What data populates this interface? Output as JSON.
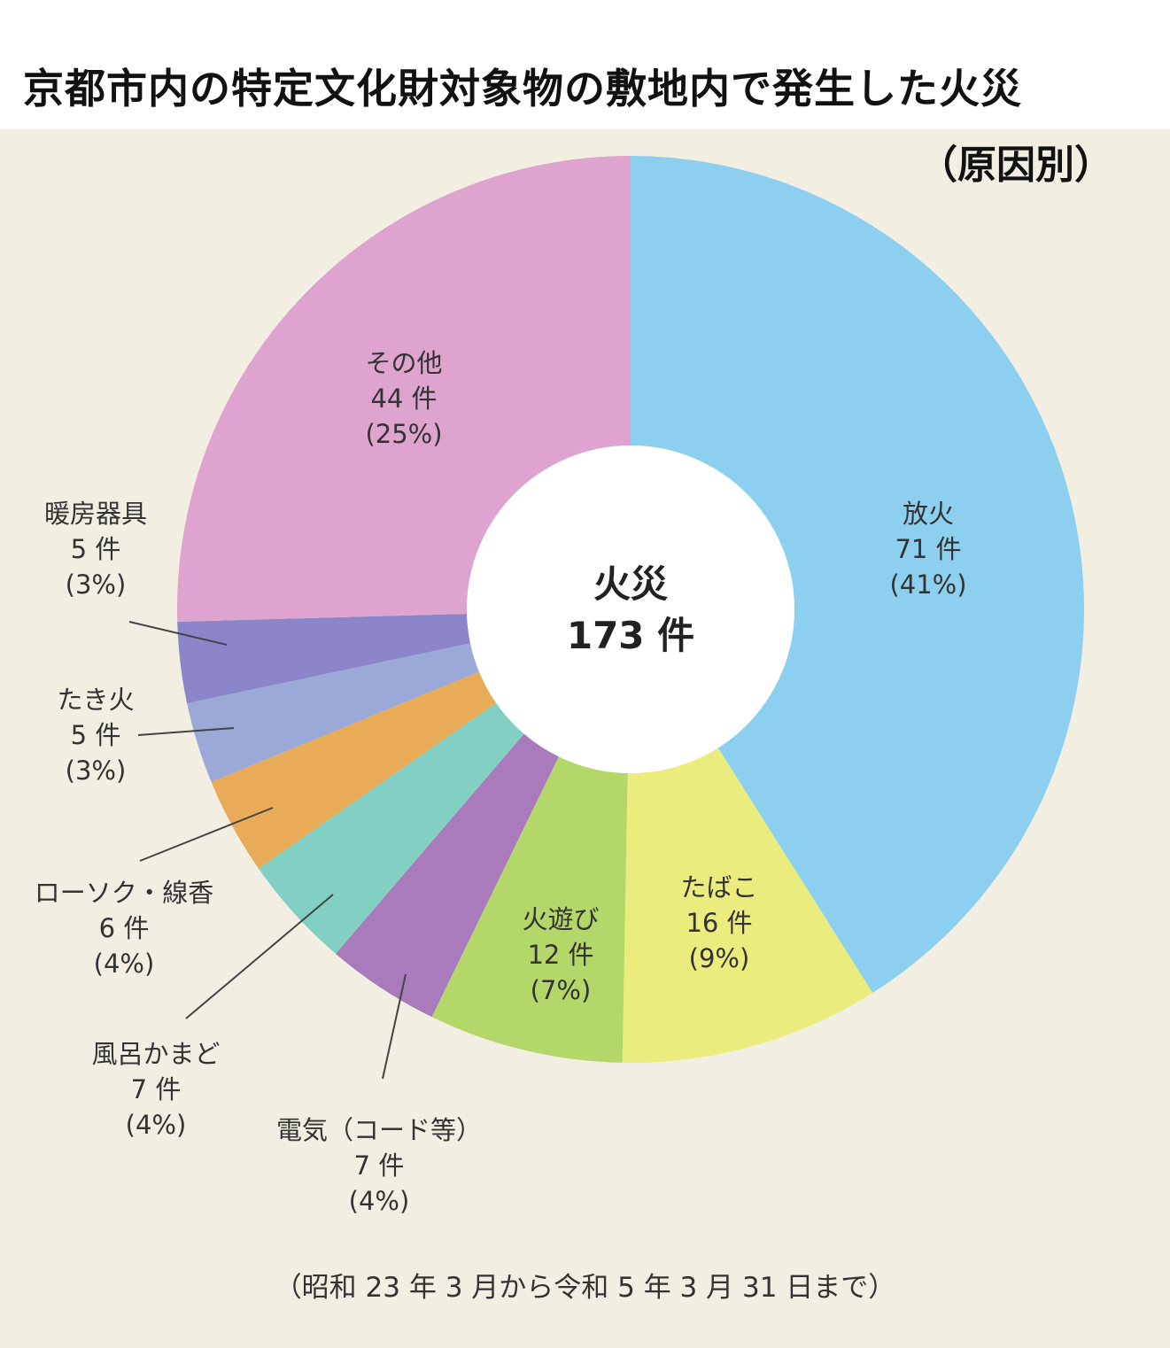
{
  "title": "京都市内の特定文化財対象物の敷地内で発生した火災",
  "subtitle": "（原因別）",
  "footnote": "（昭和 23 年 3 月から令和 5 年 3 月 31 日まで）",
  "chart_data": {
    "type": "pie",
    "style": "donut",
    "title": "京都市内の特定文化財対象物の敷地内で発生した火災",
    "subtitle": "（原因別）",
    "center": {
      "line1": "火災",
      "line2": "173 件"
    },
    "total": 173,
    "slices": [
      {
        "name": "放火",
        "count_label": "71 件",
        "pct_label": "(41%)",
        "value": 71,
        "color": "#8dcfee"
      },
      {
        "name": "たばこ",
        "count_label": "16 件",
        "pct_label": "(9%)",
        "value": 16,
        "color": "#eaed7e"
      },
      {
        "name": "火遊び",
        "count_label": "12 件",
        "pct_label": "(7%)",
        "value": 12,
        "color": "#b4d76a"
      },
      {
        "name": "電気（コード等）",
        "count_label": "7 件",
        "pct_label": "(4%)",
        "value": 7,
        "color": "#a97bbd"
      },
      {
        "name": "風呂かまど",
        "count_label": "7 件",
        "pct_label": "(4%)",
        "value": 7,
        "color": "#82cfc3"
      },
      {
        "name": "ローソク・線香",
        "count_label": "6 件",
        "pct_label": "(4%)",
        "value": 6,
        "color": "#e8ab58"
      },
      {
        "name": "たき火",
        "count_label": "5 件",
        "pct_label": "(3%)",
        "value": 5,
        "color": "#9ba9d9"
      },
      {
        "name": "暖房器具",
        "count_label": "5 件",
        "pct_label": "(3%)",
        "value": 5,
        "color": "#8a86c9"
      },
      {
        "name": "その他",
        "count_label": "44 件",
        "pct_label": "(25%)",
        "value": 44,
        "color": "#dea3cf"
      }
    ]
  }
}
